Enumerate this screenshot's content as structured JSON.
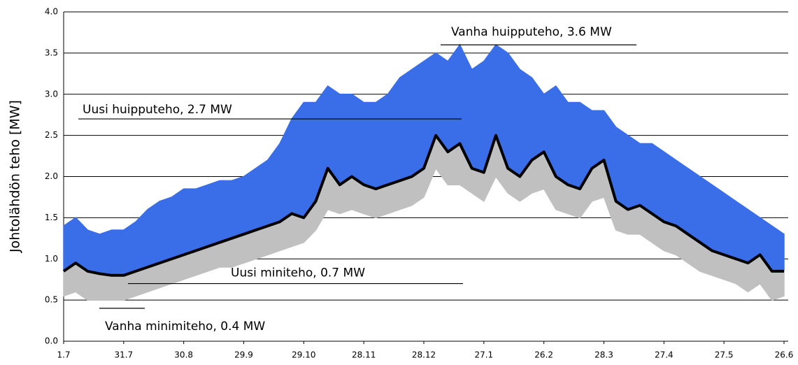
{
  "chart_data": {
    "type": "line",
    "ylabel": "Johtolähdön teho [MW]",
    "categories": [
      "1.7",
      null,
      null,
      null,
      null,
      "31.7",
      null,
      null,
      null,
      null,
      "30.8",
      null,
      null,
      null,
      null,
      "29.9",
      null,
      null,
      null,
      null,
      "29.10",
      null,
      null,
      null,
      null,
      "28.11",
      null,
      null,
      null,
      null,
      "28.12",
      null,
      null,
      null,
      null,
      "27.1",
      null,
      null,
      null,
      null,
      "26.2",
      null,
      null,
      null,
      null,
      "28.3",
      null,
      null,
      null,
      null,
      "27.4",
      null,
      null,
      null,
      null,
      "27.5",
      null,
      null,
      null,
      null,
      "26.6"
    ],
    "series": [
      {
        "color": "#3a6ee8",
        "values": [
          1.4,
          1.5,
          1.35,
          1.3,
          1.35,
          1.35,
          1.45,
          1.6,
          1.7,
          1.75,
          1.85,
          1.85,
          1.9,
          1.95,
          1.95,
          2.0,
          2.1,
          2.2,
          2.4,
          2.7,
          2.9,
          2.9,
          3.1,
          3.0,
          3.0,
          2.9,
          2.9,
          3.0,
          3.2,
          3.3,
          3.4,
          3.5,
          3.4,
          3.6,
          3.3,
          3.4,
          3.6,
          3.5,
          3.3,
          3.2,
          3.0,
          3.1,
          2.9,
          2.9,
          2.8,
          2.8,
          2.6,
          2.5,
          2.4,
          2.4,
          2.3,
          2.2,
          2.1,
          2.0,
          1.9,
          1.8,
          1.7,
          1.6,
          1.5,
          1.4,
          1.3
        ]
      },
      {
        "color": "#c0c0c0",
        "values": [
          0.55,
          0.6,
          0.5,
          0.5,
          0.5,
          0.5,
          0.55,
          0.6,
          0.65,
          0.7,
          0.75,
          0.8,
          0.85,
          0.9,
          0.9,
          0.95,
          1.0,
          1.05,
          1.1,
          1.15,
          1.2,
          1.35,
          1.6,
          1.55,
          1.6,
          1.55,
          1.5,
          1.55,
          1.6,
          1.65,
          1.75,
          2.1,
          1.9,
          1.9,
          1.8,
          1.7,
          2.0,
          1.8,
          1.7,
          1.8,
          1.85,
          1.6,
          1.55,
          1.5,
          1.7,
          1.75,
          1.35,
          1.3,
          1.3,
          1.2,
          1.1,
          1.05,
          0.95,
          0.85,
          0.8,
          0.75,
          0.7,
          0.6,
          0.7,
          0.5,
          0.55
        ]
      },
      {
        "color": "#000000",
        "values": [
          0.85,
          0.95,
          0.85,
          0.82,
          0.8,
          0.8,
          0.85,
          0.9,
          0.95,
          1.0,
          1.05,
          1.1,
          1.15,
          1.2,
          1.25,
          1.3,
          1.35,
          1.4,
          1.45,
          1.55,
          1.5,
          1.7,
          2.1,
          1.9,
          2.0,
          1.9,
          1.85,
          1.9,
          1.95,
          2.0,
          2.1,
          2.5,
          2.3,
          2.4,
          2.1,
          2.05,
          2.5,
          2.1,
          2.0,
          2.2,
          2.3,
          2.0,
          1.9,
          1.85,
          2.1,
          2.2,
          1.7,
          1.6,
          1.65,
          1.55,
          1.45,
          1.4,
          1.3,
          1.2,
          1.1,
          1.05,
          1.0,
          0.95,
          1.05,
          0.85,
          0.85
        ]
      }
    ],
    "ylim": [
      0,
      4
    ],
    "yticks": [
      {
        "value": 0,
        "label": "0.0"
      },
      0.5,
      {
        "value": 1,
        "label": "1.0"
      },
      1.5,
      {
        "value": 2,
        "label": "2.0"
      },
      2.5,
      {
        "value": 3,
        "label": "3.0"
      },
      3.5,
      {
        "value": 4,
        "label": "4.0"
      }
    ],
    "grid": true,
    "annotations": [
      {
        "text": "Vanha huipputeho, 3.6 MW",
        "y": 3.6
      },
      {
        "text": "Uusi huipputeho, 2.7 MW",
        "y": 2.7
      },
      {
        "text": "Uusi miniteho, 0.7 MW",
        "y": 0.7
      },
      {
        "text": "Vanha minimiteho, 0.4 MW",
        "y": 0.4
      }
    ]
  }
}
